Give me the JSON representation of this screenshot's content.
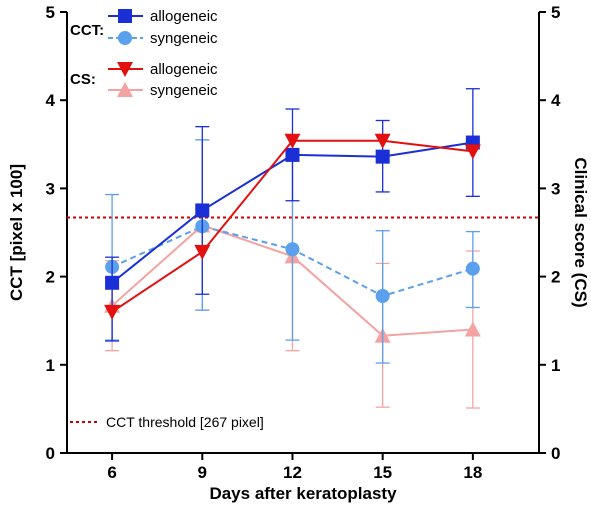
{
  "chart_data": {
    "type": "line",
    "xlabel": "Days after keratoplasty",
    "ylabel_left": "CCT [pixel x 100]",
    "ylabel_right": "Clinical score (CS)",
    "x": [
      6,
      9,
      12,
      15,
      18
    ],
    "x_ticks": [
      "6",
      "9",
      "12",
      "15",
      "18"
    ],
    "ylim_left": [
      0,
      5
    ],
    "ylim_right": [
      0,
      5
    ],
    "y_ticks_left": [
      "0",
      "1",
      "2",
      "3",
      "4",
      "5"
    ],
    "y_ticks_right": [
      "0",
      "1",
      "2",
      "3",
      "4",
      "5"
    ],
    "grid": false,
    "legend": {
      "placement": "top-left",
      "cct_group_label": "CCT:",
      "cs_group_label": "CS:"
    },
    "threshold": {
      "label": "CCT threshold [267 pixel]",
      "value": 2.67,
      "color": "#cc0000"
    },
    "series": [
      {
        "name": "allogeneic",
        "group": "CCT",
        "marker": "square",
        "line": "solid",
        "color": "#1a2fd6",
        "values": [
          1.93,
          2.75,
          3.38,
          3.36,
          3.52
        ],
        "err_low": [
          1.27,
          1.8,
          2.86,
          2.96,
          2.91
        ],
        "err_high": [
          2.22,
          3.7,
          3.9,
          3.77,
          4.13
        ]
      },
      {
        "name": "syngeneic",
        "group": "CCT",
        "marker": "circle",
        "line": "dashed",
        "color": "#5aa0ec",
        "values": [
          2.11,
          2.57,
          2.31,
          1.78,
          2.09
        ],
        "err_low": [
          1.28,
          1.62,
          1.28,
          1.02,
          1.65
        ],
        "err_high": [
          2.93,
          3.55,
          3.34,
          2.52,
          2.51
        ]
      },
      {
        "name": "allogeneic",
        "group": "CS",
        "marker": "triangle-down",
        "line": "solid",
        "color": "#e31010",
        "values": [
          1.6,
          2.28,
          3.54,
          3.54,
          3.42
        ],
        "err_low": [
          1.6,
          2.28,
          3.54,
          3.54,
          3.42
        ],
        "err_high": [
          1.6,
          2.28,
          3.54,
          3.54,
          3.42
        ]
      },
      {
        "name": "syngeneic",
        "group": "CS",
        "marker": "triangle-up",
        "line": "solid",
        "color": "#f4a3a3",
        "values": [
          1.67,
          2.58,
          2.23,
          1.33,
          1.4
        ],
        "err_low": [
          1.16,
          1.62,
          1.16,
          0.52,
          0.51
        ],
        "err_high": [
          2.18,
          3.55,
          3.31,
          2.15,
          2.29
        ]
      }
    ]
  }
}
